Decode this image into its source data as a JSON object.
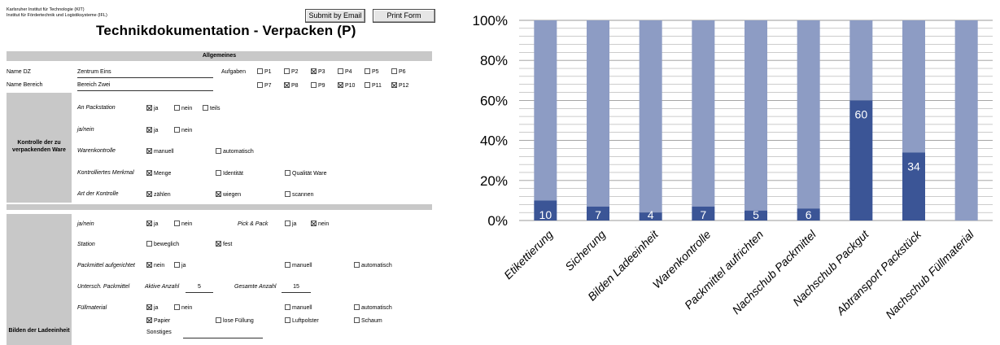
{
  "header": {
    "institute_line1": "Karlsruher Institut für Technologie (KIT)",
    "institute_line2": "Institut für Fördertechnik und Logistiksysteme (IFL)",
    "title": "Technikdokumentation - Verpacken (P)",
    "submit_button": "Submit by Email",
    "print_button": "Print Form"
  },
  "allgemeines": {
    "section_title": "Allgemeines",
    "name_dz_label": "Name DZ",
    "name_dz_value": "Zentrum Eins",
    "name_bereich_label": "Name Bereich",
    "name_bereich_value": "Bereich Zwei",
    "aufgaben_label": "Aufgaben",
    "aufgaben": [
      {
        "label": "P1",
        "checked": false
      },
      {
        "label": "P2",
        "checked": false
      },
      {
        "label": "P3",
        "checked": true
      },
      {
        "label": "P4",
        "checked": false
      },
      {
        "label": "P5",
        "checked": false
      },
      {
        "label": "P6",
        "checked": false
      },
      {
        "label": "P7",
        "checked": false
      },
      {
        "label": "P8",
        "checked": true
      },
      {
        "label": "P9",
        "checked": false
      },
      {
        "label": "P10",
        "checked": true
      },
      {
        "label": "P11",
        "checked": false
      },
      {
        "label": "P12",
        "checked": true
      }
    ]
  },
  "kontrolle": {
    "section_label": "Kontrolle der zu verpackenden Ware",
    "rows": [
      {
        "label": "An Packstation",
        "options": [
          {
            "label": "ja",
            "checked": true
          },
          {
            "label": "nein",
            "checked": false
          },
          {
            "label": "teils",
            "checked": false
          }
        ]
      },
      {
        "label": "ja/nein",
        "options": [
          {
            "label": "ja",
            "checked": true
          },
          {
            "label": "nein",
            "checked": false
          }
        ]
      },
      {
        "label": "Warenkontrolle",
        "options": [
          {
            "label": "manuell",
            "checked": true
          },
          {
            "label": "automatisch",
            "checked": false
          }
        ]
      },
      {
        "label": "Kontrolliertes Merkmal",
        "options": [
          {
            "label": "Menge",
            "checked": true
          },
          {
            "label": "Identität",
            "checked": false
          },
          {
            "label": "Qualität Ware",
            "checked": false
          }
        ]
      },
      {
        "label": "Art der Kontrolle",
        "options": [
          {
            "label": "zählen",
            "checked": true
          },
          {
            "label": "wiegen",
            "checked": true
          },
          {
            "label": "scannen",
            "checked": false
          }
        ]
      }
    ]
  },
  "ladeeinheit": {
    "section_label": "Bilden der Ladeeinheit",
    "janein_label": "ja/nein",
    "janein": [
      {
        "label": "ja",
        "checked": true
      },
      {
        "label": "nein",
        "checked": false
      }
    ],
    "pickpack_label": "Pick & Pack",
    "pickpack": [
      {
        "label": "ja",
        "checked": false
      },
      {
        "label": "nein",
        "checked": true
      }
    ],
    "station_label": "Station",
    "station": [
      {
        "label": "beweglich",
        "checked": false
      },
      {
        "label": "fest",
        "checked": true
      }
    ],
    "packmittel_label": "Packmittel aufgerichtet",
    "packmittel": [
      {
        "label": "nein",
        "checked": true
      },
      {
        "label": "ja",
        "checked": false
      },
      {
        "label": "manuell",
        "checked": false
      },
      {
        "label": "automatisch",
        "checked": false
      }
    ],
    "untersch_label": "Untersch. Packmittel",
    "aktive_anzahl_label": "Aktive Anzahl",
    "aktive_anzahl_value": "5",
    "gesamte_anzahl_label": "Gesamte Anzahl",
    "gesamte_anzahl_value": "15",
    "fuell_label": "Füllmaterial",
    "fuell_row1": [
      {
        "label": "ja",
        "checked": true
      },
      {
        "label": "nein",
        "checked": false
      },
      {
        "label": "manuell",
        "checked": false
      },
      {
        "label": "automatisch",
        "checked": false
      }
    ],
    "fuell_row2": [
      {
        "label": "Papier",
        "checked": true
      },
      {
        "label": "lose Füllung",
        "checked": false
      },
      {
        "label": "Luftpolster",
        "checked": false
      },
      {
        "label": "Schaum",
        "checked": false
      }
    ],
    "sonstiges_label": "Sonstiges"
  },
  "chart_data": {
    "type": "bar",
    "stacked": true,
    "categories": [
      "Etikettierung",
      "Sicherung",
      "Bilden Ladeeinheit",
      "Warenkontrolle",
      "Packmittel aufrichten",
      "Nachschub Packmittel",
      "Nachschub Packgut",
      "Abtransport Packstück",
      "Nachschub Füllmaterial"
    ],
    "values": [
      10,
      7,
      4,
      7,
      5,
      6,
      60,
      34,
      0
    ],
    "data_labels": [
      "10",
      "7",
      "4",
      "7",
      "5",
      "6",
      "60",
      "34",
      ""
    ],
    "remainder_to": 100,
    "yticks": [
      "0%",
      "20%",
      "40%",
      "60%",
      "80%",
      "100%"
    ],
    "ylim": [
      0,
      100
    ],
    "grid": true,
    "colors": {
      "value": "#3b5596",
      "remainder": "#8d9cc4",
      "grid": "#999999"
    }
  }
}
